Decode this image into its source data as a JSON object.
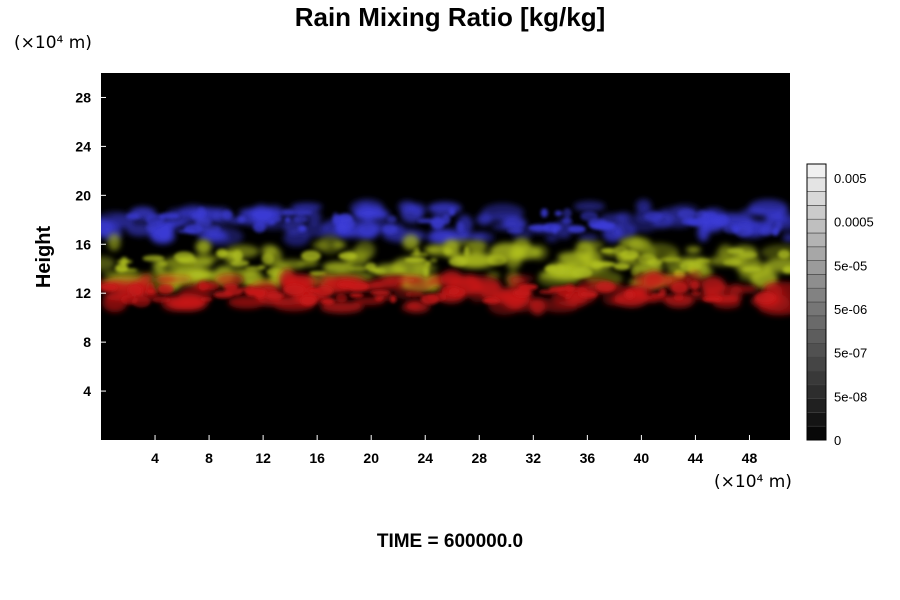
{
  "chart_data": {
    "type": "heatmap",
    "title": "Rain Mixing Ratio [kg/kg]",
    "ylabel": "Height",
    "xlabel": "",
    "x_unit": "(×10⁴ m)",
    "y_unit": "(×10⁴ m)",
    "xlim": [
      0,
      51
    ],
    "ylim": [
      0,
      30
    ],
    "x_ticks": [
      "4",
      "8",
      "12",
      "16",
      "20",
      "24",
      "28",
      "32",
      "36",
      "40",
      "44",
      "48"
    ],
    "y_ticks": [
      "4",
      "8",
      "12",
      "16",
      "20",
      "24",
      "28"
    ],
    "background": "#000000",
    "colorbar": {
      "scale": "log",
      "labels": [
        "0.005",
        "0.0005",
        "5e-05",
        "5e-06",
        "5e-07",
        "5e-08",
        "0"
      ],
      "levels": 20
    },
    "layers": [
      {
        "color": "#3b3bd6",
        "y_range": [
          16.5,
          19.2
        ],
        "description": "blue upper band"
      },
      {
        "color": "#b0c020",
        "y_range": [
          12.8,
          16.2
        ],
        "description": "yellow-green middle band"
      },
      {
        "color": "#c81818",
        "y_range": [
          10.8,
          13.2
        ],
        "description": "red lower band"
      }
    ]
  },
  "footer": {
    "time_label": "TIME = 600000.0"
  }
}
